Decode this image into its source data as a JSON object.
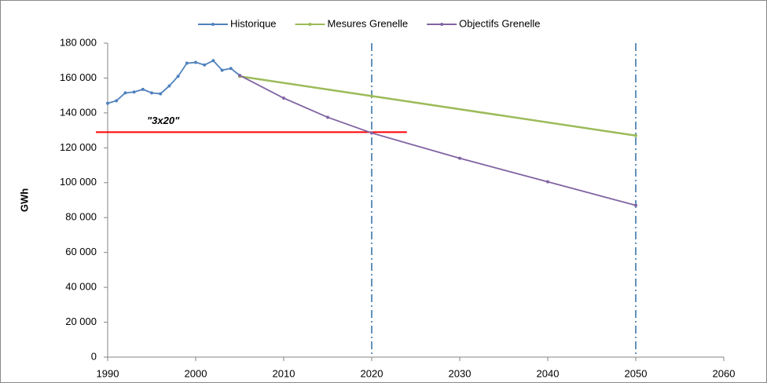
{
  "chart_data": {
    "type": "line",
    "y_label": "GWh",
    "xlim": [
      1990,
      2060
    ],
    "xticks": [
      1990,
      2000,
      2010,
      2020,
      2030,
      2040,
      2050,
      2060
    ],
    "ylim": [
      0,
      180000
    ],
    "yticks": [
      0,
      {
        "value": 20000,
        "label": "20 000"
      },
      {
        "value": 40000,
        "label": "40 000"
      },
      {
        "value": 60000,
        "label": "60 000"
      },
      {
        "value": 80000,
        "label": "80 000"
      },
      {
        "value": 100000,
        "label": "100 000"
      },
      {
        "value": 120000,
        "label": "120 000"
      },
      {
        "value": 140000,
        "label": "140 000"
      },
      {
        "value": 160000,
        "label": "160 000"
      },
      {
        "value": 180000,
        "label": "180 000"
      }
    ],
    "series": [
      {
        "name": "Historique",
        "color": "#4f81bd",
        "x": [
          1990,
          1991,
          1992,
          1993,
          1994,
          1995,
          1996,
          1997,
          1998,
          1999,
          2000,
          2001,
          2002,
          2003,
          2004,
          2005
        ],
        "values": [
          145500,
          147000,
          151500,
          152000,
          153500,
          151500,
          151000,
          155500,
          161000,
          168500,
          169000,
          167500,
          170000,
          164500,
          165500,
          161500
        ]
      },
      {
        "name": "Mesures Grenelle",
        "color": "#9bbb59",
        "x": [
          2005,
          2020,
          2050
        ],
        "values": [
          161000,
          149700,
          127000
        ]
      },
      {
        "name": "Objectifs Grenelle",
        "color": "#8064a2",
        "x": [
          2005,
          2010,
          2015,
          2020,
          2030,
          2040,
          2050
        ],
        "values": [
          161500,
          148500,
          137500,
          128500,
          114000,
          100500,
          87000
        ]
      }
    ],
    "reference_lines": {
      "horizontal": {
        "label": "\"3x20\"",
        "y": 129000,
        "x": [
          1990,
          2024
        ],
        "color": "#ff0000"
      },
      "vertical": [
        2020,
        2050
      ],
      "vertical_color": "#2e6da4"
    }
  }
}
